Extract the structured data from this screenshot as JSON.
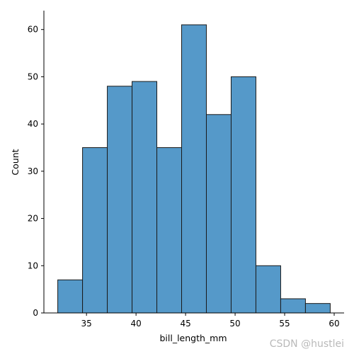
{
  "chart_data": {
    "type": "bar",
    "subtype": "histogram",
    "bins": [
      {
        "x0": 32.1,
        "x1": 34.6,
        "count": 7
      },
      {
        "x0": 34.6,
        "x1": 37.1,
        "count": 35
      },
      {
        "x0": 37.1,
        "x1": 39.6,
        "count": 48
      },
      {
        "x0": 39.6,
        "x1": 42.1,
        "count": 49
      },
      {
        "x0": 42.1,
        "x1": 44.6,
        "count": 35
      },
      {
        "x0": 44.6,
        "x1": 47.1,
        "count": 61
      },
      {
        "x0": 47.1,
        "x1": 49.6,
        "count": 42
      },
      {
        "x0": 49.6,
        "x1": 52.1,
        "count": 50
      },
      {
        "x0": 52.1,
        "x1": 54.6,
        "count": 10
      },
      {
        "x0": 54.6,
        "x1": 57.1,
        "count": 3
      },
      {
        "x0": 57.1,
        "x1": 59.6,
        "count": 2
      }
    ],
    "xlabel": "bill_length_mm",
    "ylabel": "Count",
    "xlim": [
      30.7,
      61.0
    ],
    "ylim": [
      0,
      64
    ],
    "xticks": [
      35,
      40,
      45,
      50,
      55,
      60
    ],
    "yticks": [
      0,
      10,
      20,
      30,
      40,
      50,
      60
    ],
    "grid": false,
    "legend": "none",
    "colors": {
      "bar_fill": "#5599c9",
      "bar_edge": "#1a1a1a",
      "axis": "#000000"
    }
  },
  "watermark": "CSDN @hustlei"
}
